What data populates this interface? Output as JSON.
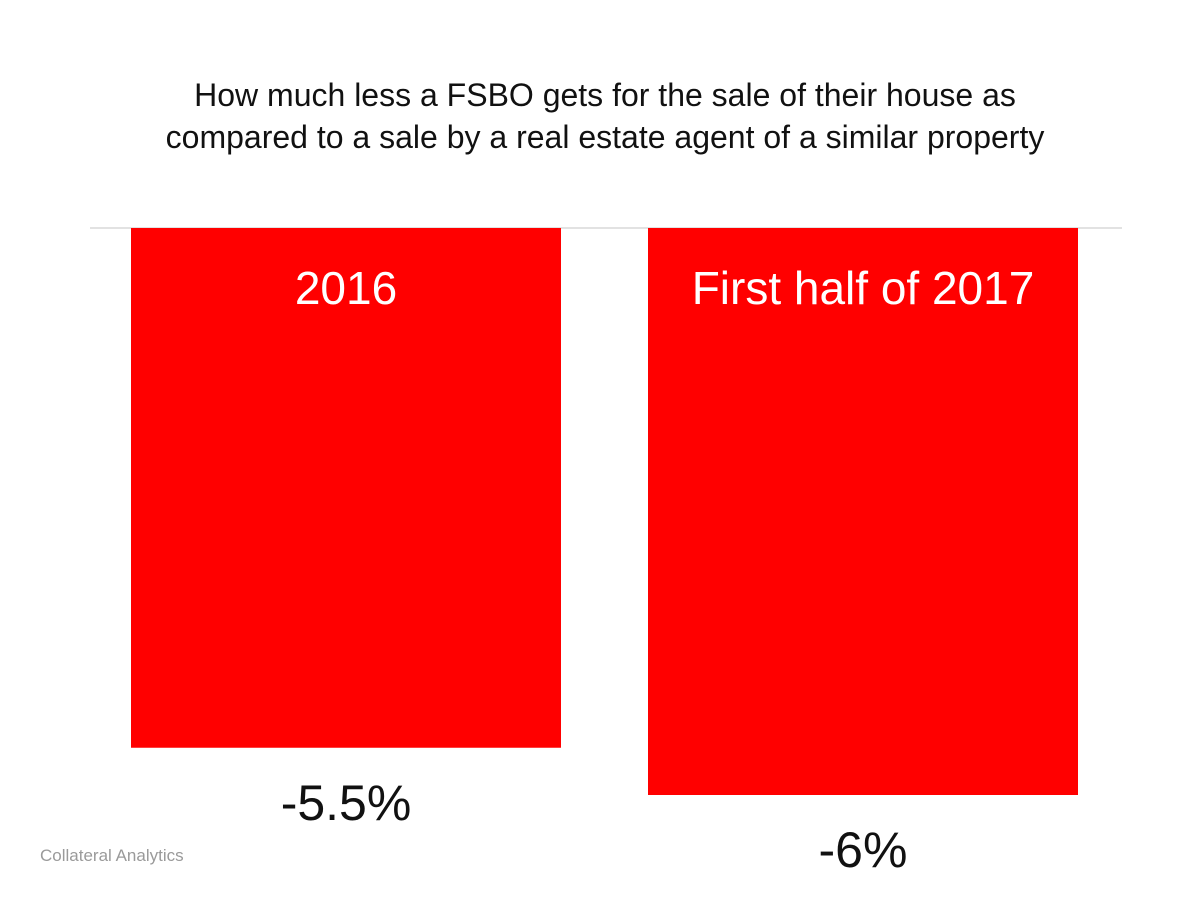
{
  "title_lines": [
    "How much less a FSBO gets for the sale of their house as",
    "compared to a sale by a real estate agent of a similar property"
  ],
  "source": "Collateral Analytics",
  "chart_data": {
    "type": "bar",
    "title": "How much less a FSBO gets for the sale of their house as compared to a sale by a real estate agent of a similar property",
    "categories": [
      "2016",
      "First half of 2017"
    ],
    "values": [
      -5.5,
      -6
    ],
    "value_labels": [
      "-5.5%",
      "-6%"
    ],
    "ylim": [
      -7.2,
      0
    ],
    "grid": false,
    "legend": "none",
    "xlabel": "",
    "ylabel": "",
    "bar_color": "#ff0000",
    "category_label_color": "#ffffff",
    "value_label_color": "#111111",
    "baseline_color": "#d9d9d9"
  }
}
